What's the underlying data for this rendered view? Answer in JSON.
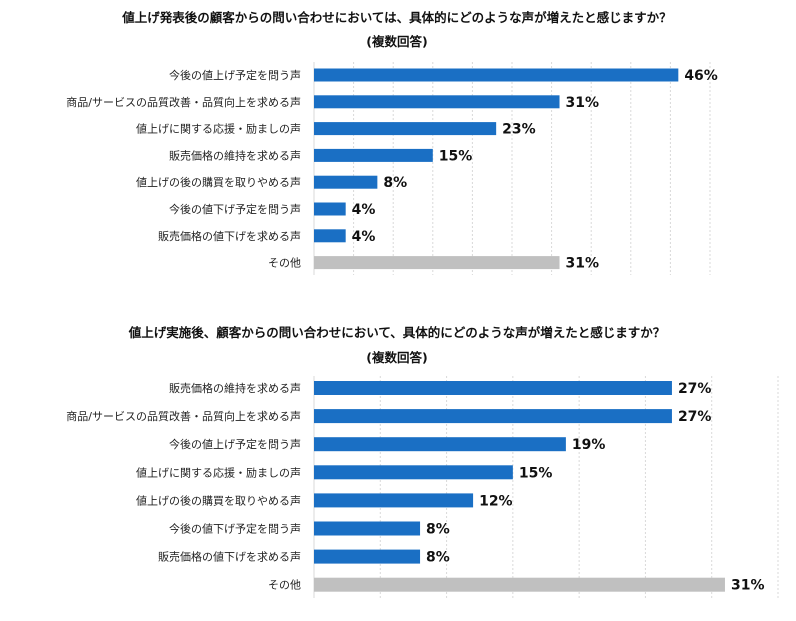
{
  "colors": {
    "bar": "#1a6fc4",
    "other_bar": "#c0c0c0"
  },
  "chart_data": [
    {
      "type": "bar",
      "orientation": "horizontal",
      "title": "値上げ発表後の顧客からの問い合わせにおいては、具体的にどのような声が増えたと感じますか？",
      "subtitle": "(複数回答)",
      "categories": [
        "今後の値上げ予定を問う声",
        "商品/サービスの品質改善・品質向上を求める声",
        "値上げに関する応援・励ましの声",
        "販売価格の維持を求める声",
        "値上げの後の購買を取りやめる声",
        "今後の値下げ予定を問う声",
        "販売価格の値下げを求める声",
        "その他"
      ],
      "values": [
        46,
        31,
        23,
        15,
        8,
        4,
        4,
        31
      ],
      "value_labels": [
        "46%",
        "31%",
        "23%",
        "15%",
        "8%",
        "4%",
        "4%",
        "31%"
      ],
      "xlim": [
        0,
        50
      ],
      "grid": true
    },
    {
      "type": "bar",
      "orientation": "horizontal",
      "title": "値上げ実施後、顧客からの問い合わせにおいて、具体的にどのような声が増えたと感じますか？",
      "subtitle": "(複数回答)",
      "categories": [
        "販売価格の維持を求める声",
        "商品/サービスの品質改善・品質向上を求める声",
        "今後の値上げ予定を問う声",
        "値上げに関する応援・励ましの声",
        "値上げの後の購買を取りやめる声",
        "今後の値下げ予定を問う声",
        "販売価格の値下げを求める声",
        "その他"
      ],
      "values": [
        27,
        27,
        19,
        15,
        12,
        8,
        8,
        31
      ],
      "value_labels": [
        "27%",
        "27%",
        "19%",
        "15%",
        "12%",
        "8%",
        "8%",
        "31%"
      ],
      "xlim": [
        0,
        35
      ],
      "grid": true
    }
  ]
}
